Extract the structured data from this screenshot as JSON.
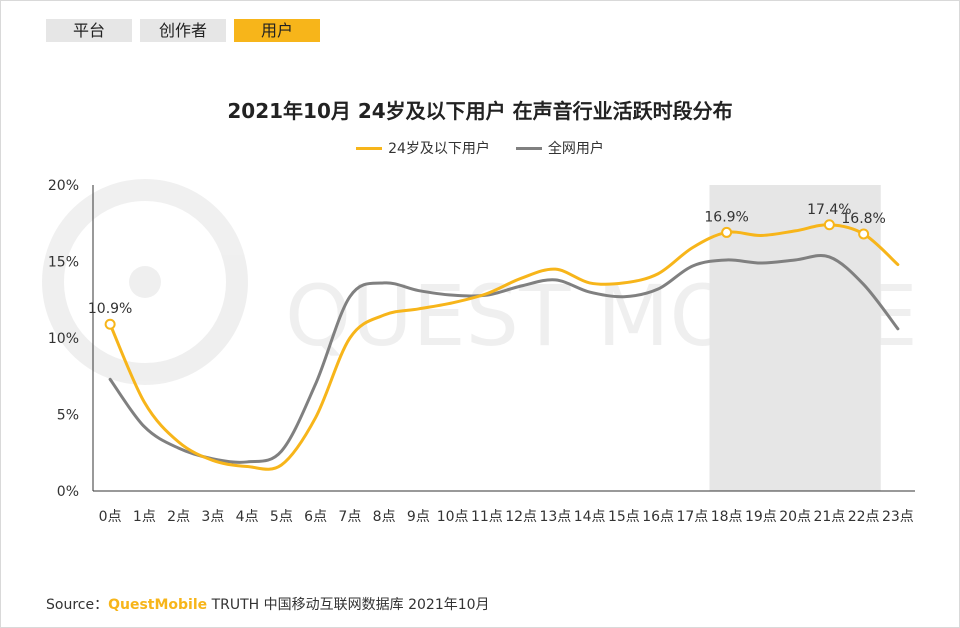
{
  "tabs": [
    {
      "label": "平台",
      "active": false
    },
    {
      "label": "创作者",
      "active": false
    },
    {
      "label": "用户",
      "active": true
    }
  ],
  "watermark": "QUEST MOBILE",
  "source": {
    "prefix": "Source：",
    "brand": "QuestMobile",
    "rest": " TRUTH 中国移动互联网数据库 2021年10月"
  },
  "colors": {
    "accent": "#f7b51a",
    "series_all": "#808080",
    "highlight_band": "#e6e6e6"
  },
  "chart_data": {
    "type": "line",
    "title": "2021年10月 24岁及以下用户 在声音行业活跃时段分布",
    "categories": [
      "0点",
      "1点",
      "2点",
      "3点",
      "4点",
      "5点",
      "6点",
      "7点",
      "8点",
      "9点",
      "10点",
      "11点",
      "12点",
      "13点",
      "14点",
      "15点",
      "16点",
      "17点",
      "18点",
      "19点",
      "20点",
      "21点",
      "22点",
      "23点"
    ],
    "ylim": [
      0,
      20
    ],
    "yticks": [
      "0%",
      "5%",
      "10%",
      "15%",
      "20%"
    ],
    "series": [
      {
        "name": "24岁及以下用户",
        "color": "#f7b51a",
        "values": [
          10.9,
          5.8,
          3.2,
          2.0,
          1.6,
          1.7,
          4.8,
          10.0,
          11.5,
          11.9,
          12.3,
          12.9,
          13.9,
          14.5,
          13.6,
          13.6,
          14.2,
          15.9,
          16.9,
          16.7,
          17.0,
          17.4,
          16.8,
          14.8
        ]
      },
      {
        "name": "全网用户",
        "color": "#808080",
        "values": [
          7.3,
          4.2,
          2.8,
          2.1,
          1.9,
          2.6,
          7.0,
          12.7,
          13.6,
          13.1,
          12.8,
          12.8,
          13.4,
          13.8,
          13.0,
          12.7,
          13.2,
          14.7,
          15.1,
          14.9,
          15.1,
          15.3,
          13.5,
          10.6
        ]
      }
    ],
    "highlight_range": [
      "18点",
      "22点"
    ],
    "annotations": [
      {
        "series": 0,
        "index": 0,
        "label": "10.9%"
      },
      {
        "series": 0,
        "index": 18,
        "label": "16.9%"
      },
      {
        "series": 0,
        "index": 21,
        "label": "17.4%"
      },
      {
        "series": 0,
        "index": 22,
        "label": "16.8%"
      }
    ],
    "grid": false,
    "legend_position": "top-center"
  }
}
